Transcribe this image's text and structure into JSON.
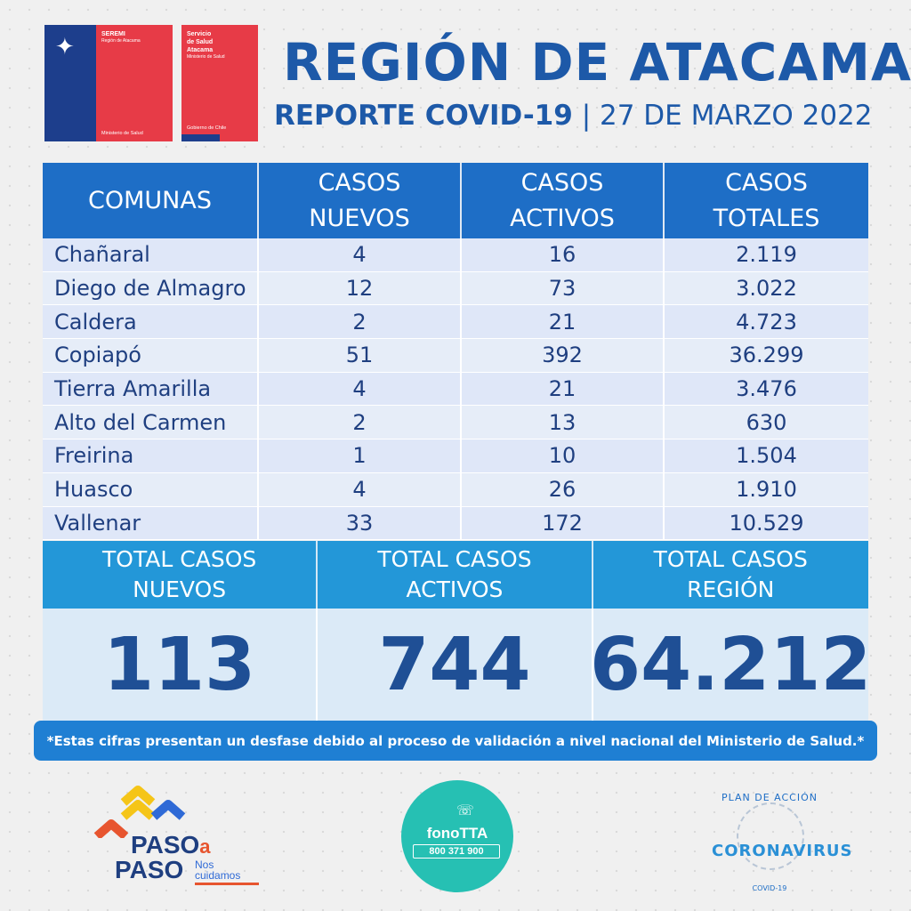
{
  "logos": {
    "seremi_title": "SEREMI",
    "seremi_sub": "Región de Atacama",
    "seremi_bottom": "Ministerio de Salud",
    "salud_line1": "Servicio",
    "salud_line2": "de Salud",
    "salud_line3": "Atacama",
    "salud_sub": "Ministerio de Salud",
    "salud_bottom": "Gobierno de Chile"
  },
  "header": {
    "title": "REGIÓN DE ATACAMA",
    "subtitle_bold": "REPORTE COVID-19",
    "separator": "|",
    "date": "27 DE MARZO 2022"
  },
  "table": {
    "headers": {
      "comunas": "COMUNAS",
      "nuevos_l1": "CASOS",
      "nuevos_l2": "NUEVOS",
      "activos_l1": "CASOS",
      "activos_l2": "ACTIVOS",
      "totales_l1": "CASOS",
      "totales_l2": "TOTALES"
    },
    "rows": [
      {
        "comuna": "Chañaral",
        "nuevos": "4",
        "activos": "16",
        "totales": "2.119"
      },
      {
        "comuna": "Diego de Almagro",
        "nuevos": "12",
        "activos": "73",
        "totales": "3.022"
      },
      {
        "comuna": "Caldera",
        "nuevos": "2",
        "activos": "21",
        "totales": "4.723"
      },
      {
        "comuna": "Copiapó",
        "nuevos": "51",
        "activos": "392",
        "totales": "36.299"
      },
      {
        "comuna": "Tierra Amarilla",
        "nuevos": "4",
        "activos": "21",
        "totales": "3.476"
      },
      {
        "comuna": "Alto del Carmen",
        "nuevos": "2",
        "activos": "13",
        "totales": "630"
      },
      {
        "comuna": "Freirina",
        "nuevos": "1",
        "activos": "10",
        "totales": "1.504"
      },
      {
        "comuna": "Huasco",
        "nuevos": "4",
        "activos": "26",
        "totales": "1.910"
      },
      {
        "comuna": "Vallenar",
        "nuevos": "33",
        "activos": "172",
        "totales": "10.529"
      }
    ]
  },
  "totals": {
    "nuevos_label_l1": "TOTAL CASOS",
    "nuevos_label_l2": "NUEVOS",
    "activos_label_l1": "TOTAL CASOS",
    "activos_label_l2": "ACTIVOS",
    "region_label_l1": "TOTAL CASOS",
    "region_label_l2": "REGIÓN",
    "nuevos": "113",
    "activos": "744",
    "region": "64.212"
  },
  "note": "*Estas cifras presentan un desfase debido al proceso de validación a nivel nacional del Ministerio de Salud.*",
  "footer": {
    "paso_1": "PASO",
    "paso_a": "a",
    "paso_2": "PASO",
    "nos": "Nos",
    "cuidamos": "cuidamos",
    "fono_title": "fonoTTA",
    "fono_number": "800 371 900",
    "plan": "PLAN DE ACCIÓN",
    "coronavirus": "CORONAVIRUS",
    "covid": "COVID-19"
  },
  "colors": {
    "primary_blue": "#1d59a8",
    "header_blue": "#1e6ec6",
    "totals_blue": "#2397d8",
    "gov_red": "#e73b47",
    "gov_blue": "#1d3e8c"
  }
}
